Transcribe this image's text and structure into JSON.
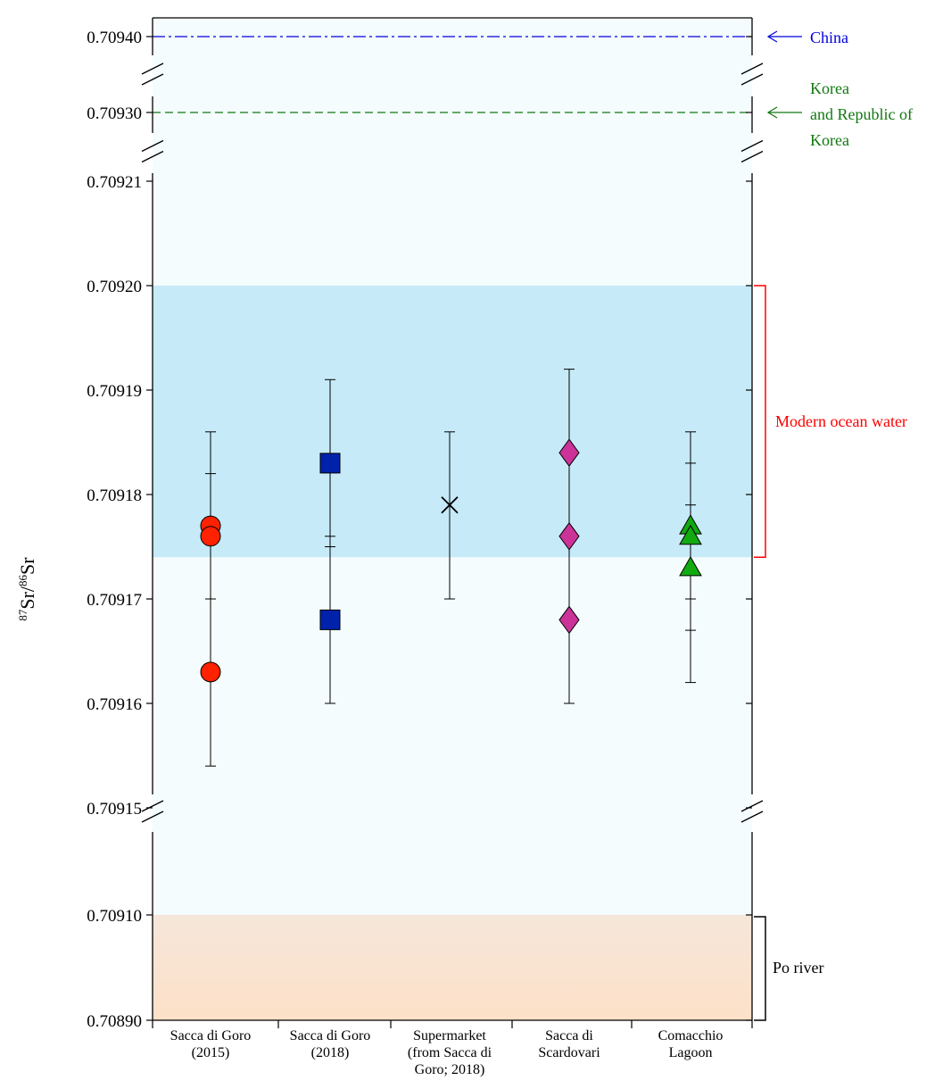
{
  "chart_data": {
    "type": "scatter",
    "ylabel": {
      "mass1": "87",
      "elem1": "Sr",
      "slash": "/",
      "mass2": "86",
      "elem2": "Sr"
    },
    "categories": [
      [
        "Sacca di Goro",
        "(2015)"
      ],
      [
        "Sacca di Goro",
        "(2018)"
      ],
      [
        "Supermarket",
        "(from Sacca di",
        "Goro; 2018)"
      ],
      [
        "Sacca di",
        "Scardovari"
      ],
      [
        "Comacchio",
        "Lagoon"
      ]
    ],
    "y_ticks": [
      "0.70940",
      "0.70930",
      "0.70921",
      "0.70920",
      "0.70919",
      "0.70918",
      "0.70917",
      "0.70916",
      "0.70915",
      "0.70910",
      "0.70890"
    ],
    "y_axis_breaks": [
      [
        0.7093,
        0.7094
      ],
      [
        0.70921,
        0.7093
      ],
      [
        0.7091,
        0.70915
      ]
    ],
    "series": [
      {
        "category": "Sacca di Goro (2015)",
        "marker": "circle",
        "color": "#ff2200",
        "points": [
          {
            "y": 0.709177,
            "y_low": 0.70917,
            "y_high": 0.709186
          },
          {
            "y": 0.709176,
            "y_low": 0.70917,
            "y_high": 0.709182
          },
          {
            "y": 0.709163,
            "y_low": 0.709154,
            "y_high": 0.70917
          }
        ]
      },
      {
        "category": "Sacca di Goro (2018)",
        "marker": "square",
        "color": "#0022aa",
        "points": [
          {
            "y": 0.709183,
            "y_low": 0.709175,
            "y_high": 0.709191
          },
          {
            "y": 0.709168,
            "y_low": 0.70916,
            "y_high": 0.709176
          }
        ]
      },
      {
        "category": "Supermarket (from Sacca di Goro; 2018)",
        "marker": "x",
        "color": "#000000",
        "points": [
          {
            "y": 0.709179,
            "y_low": 0.70917,
            "y_high": 0.709186
          }
        ]
      },
      {
        "category": "Sacca di Scardovari",
        "marker": "diamond",
        "color": "#cc3399",
        "points": [
          {
            "y": 0.709184,
            "y_low": 0.709176,
            "y_high": 0.709192
          },
          {
            "y": 0.709176,
            "y_low": 0.709168,
            "y_high": 0.709184
          },
          {
            "y": 0.709168,
            "y_low": 0.70916,
            "y_high": 0.709176
          }
        ]
      },
      {
        "category": "Comacchio Lagoon",
        "marker": "triangle",
        "color": "#11aa11",
        "points": [
          {
            "y": 0.709177,
            "y_low": 0.70917,
            "y_high": 0.709186
          },
          {
            "y": 0.709176,
            "y_low": 0.709167,
            "y_high": 0.709183
          },
          {
            "y": 0.709173,
            "y_low": 0.709162,
            "y_high": 0.709179
          }
        ]
      }
    ],
    "reference_lines": [
      {
        "y": 0.7094,
        "label_lines": [
          "China"
        ],
        "style": "dash-dot",
        "color": "#0000dd"
      },
      {
        "y": 0.7093,
        "label_lines": [
          "Korea",
          "and Republic of",
          "Korea"
        ],
        "style": "dashed",
        "color": "#117711"
      }
    ],
    "bands": [
      {
        "y_low": 0.709174,
        "y_high": 0.7092,
        "label": "Modern ocean water",
        "fill": "#c6eaf8",
        "bracket_color": "#ff0000",
        "label_color": "#ff0000"
      },
      {
        "y_low": 0.7089,
        "y_high": 0.7091,
        "label": "Po river",
        "fill_top": "#f6e6da",
        "fill_bottom": "#fde1c8",
        "bracket_color": "#000000",
        "label_color": "#000000"
      }
    ],
    "plot_background": "#f4fcfd"
  }
}
